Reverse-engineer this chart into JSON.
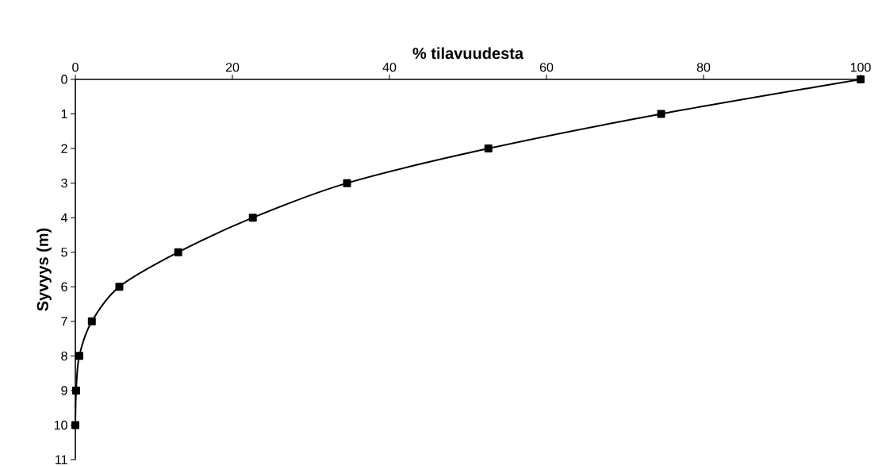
{
  "chart_data": {
    "type": "line",
    "xlabel": "% tilavuudesta",
    "ylabel": "Syvyys (m)",
    "x": [
      100,
      74.6,
      52.6,
      34.6,
      22.6,
      13.1,
      5.6,
      2.1,
      0.5,
      0.1,
      0
    ],
    "series": [
      {
        "color": "#000000",
        "values": [
          0,
          1,
          2,
          3,
          4,
          5,
          6,
          7,
          8,
          9,
          10
        ]
      }
    ],
    "xlim": [
      0,
      100
    ],
    "xticks": [
      0,
      20,
      40,
      60,
      80,
      100
    ],
    "ylim": [
      11,
      0
    ],
    "yticks": [
      0,
      1,
      2,
      3,
      4,
      5,
      6,
      7,
      8,
      9,
      10,
      11
    ],
    "marker": "square",
    "line_style": "solid"
  }
}
